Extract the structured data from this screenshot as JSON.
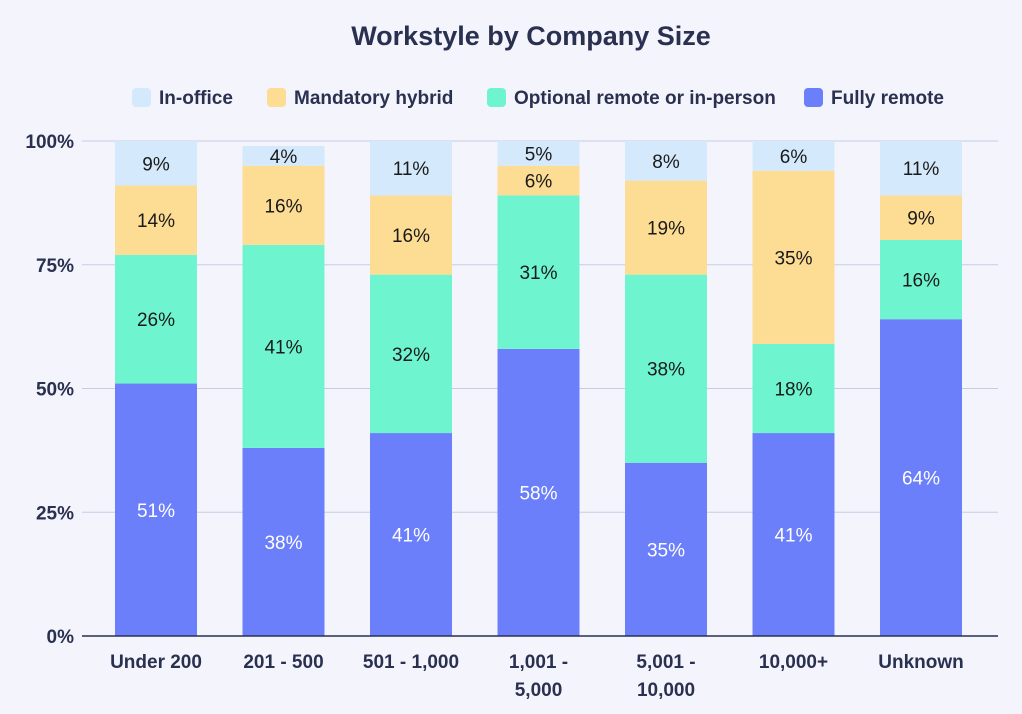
{
  "chart_data": {
    "type": "bar",
    "stacked": true,
    "title": "Workstyle by Company Size",
    "xlabel": "",
    "ylabel": "",
    "ylim": [
      0,
      100
    ],
    "yticks": [
      "0%",
      "25%",
      "50%",
      "75%",
      "100%"
    ],
    "ytick_values": [
      0,
      25,
      50,
      75,
      100
    ],
    "grid": true,
    "legend_position": "top",
    "categories": [
      [
        "Under 200"
      ],
      [
        "201 - 500"
      ],
      [
        "501 - 1,000"
      ],
      [
        "1,001 -",
        "5,000"
      ],
      [
        "5,001 -",
        "10,000"
      ],
      [
        "10,000+"
      ],
      [
        "Unknown"
      ]
    ],
    "series": [
      {
        "name": "Fully remote",
        "color": "#6b7ffb",
        "label_color": "#ffffff",
        "values": [
          51,
          38,
          41,
          58,
          35,
          41,
          64
        ]
      },
      {
        "name": "Optional remote or in-person",
        "color": "#6ef5d0",
        "label_color": "#1a1a1a",
        "values": [
          26,
          41,
          32,
          31,
          38,
          18,
          16
        ]
      },
      {
        "name": "Mandatory hybrid",
        "color": "#fddc94",
        "label_color": "#1a1a1a",
        "values": [
          14,
          16,
          16,
          6,
          19,
          35,
          9
        ]
      },
      {
        "name": "In-office",
        "color": "#d4e9fb",
        "label_color": "#1a1a1a",
        "values": [
          9,
          4,
          11,
          5,
          8,
          6,
          11
        ]
      }
    ],
    "legend_order": [
      "In-office",
      "Mandatory hybrid",
      "Optional remote or in-person",
      "Fully remote"
    ]
  }
}
